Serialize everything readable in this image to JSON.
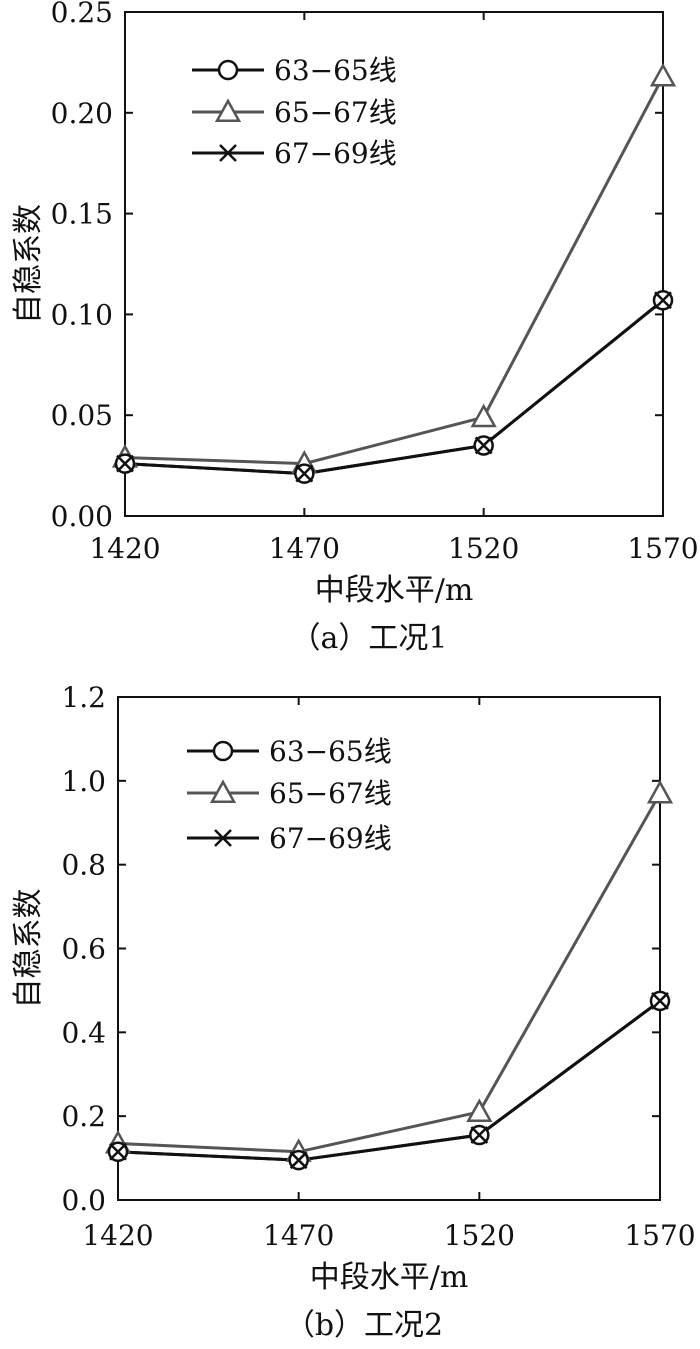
{
  "chart_data": [
    {
      "type": "line",
      "caption": "（a）工况1",
      "xlabel": "中段水平/m",
      "ylabel": "自稳系数",
      "x": [
        1420,
        1470,
        1520,
        1570
      ],
      "xticks": [
        "1420",
        "1470",
        "1520",
        "1570"
      ],
      "ylim": [
        0,
        0.25
      ],
      "yticks": [
        "0.00",
        "0.05",
        "0.10",
        "0.15",
        "0.20",
        "0.25"
      ],
      "legend_position": "top-left",
      "grid": false,
      "series": [
        {
          "name": "63−65线",
          "marker": "circle",
          "color": "#111111",
          "values": [
            0.026,
            0.021,
            0.035,
            0.107
          ]
        },
        {
          "name": "65−67线",
          "marker": "triangle",
          "color": "#555555",
          "values": [
            0.029,
            0.026,
            0.049,
            0.218
          ]
        },
        {
          "name": "67−69线",
          "marker": "x",
          "color": "#111111",
          "values": [
            0.026,
            0.021,
            0.035,
            0.107
          ]
        }
      ]
    },
    {
      "type": "line",
      "caption": "（b）工况2",
      "xlabel": "中段水平/m",
      "ylabel": "自稳系数",
      "x": [
        1420,
        1470,
        1520,
        1570
      ],
      "xticks": [
        "1420",
        "1470",
        "1520",
        "1570"
      ],
      "ylim": [
        0,
        1.2
      ],
      "yticks": [
        "0.0",
        "0.2",
        "0.4",
        "0.6",
        "0.8",
        "1.0",
        "1.2"
      ],
      "legend_position": "top-left",
      "grid": false,
      "series": [
        {
          "name": "63−65线",
          "marker": "circle",
          "color": "#111111",
          "values": [
            0.115,
            0.095,
            0.155,
            0.475
          ]
        },
        {
          "name": "65−67线",
          "marker": "triangle",
          "color": "#555555",
          "values": [
            0.135,
            0.115,
            0.21,
            0.97
          ]
        },
        {
          "name": "67−69线",
          "marker": "x",
          "color": "#111111",
          "values": [
            0.115,
            0.095,
            0.155,
            0.475
          ]
        }
      ]
    }
  ]
}
